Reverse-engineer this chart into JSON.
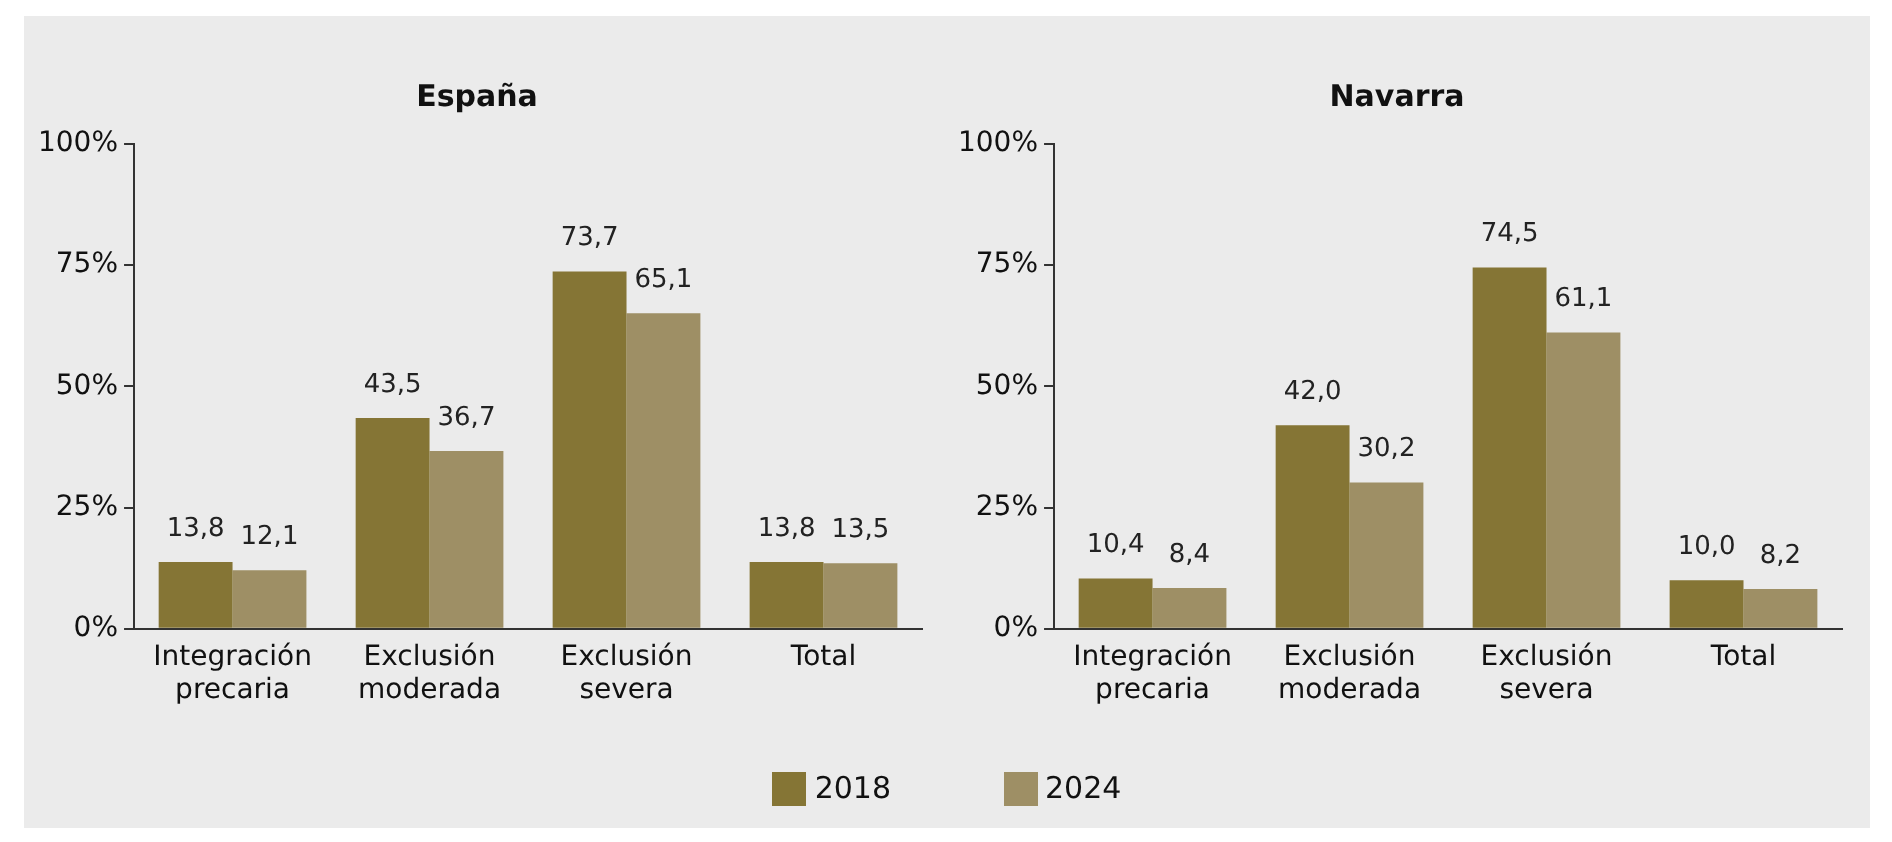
{
  "chart_data": [
    {
      "type": "bar",
      "title": "España",
      "categories": [
        "Integración precaria",
        "Exclusión moderada",
        "Exclusión severa",
        "Total"
      ],
      "series": [
        {
          "name": "2018",
          "color": "#857535",
          "values": [
            13.8,
            43.5,
            73.7,
            13.8
          ],
          "value_labels": [
            "13,8",
            "43,5",
            "73,7",
            "13,8"
          ]
        },
        {
          "name": "2024",
          "color": "#9e8f65",
          "values": [
            12.1,
            36.7,
            65.1,
            13.5
          ],
          "value_labels": [
            "12,1",
            "36,7",
            "65,1",
            "13,5"
          ]
        }
      ],
      "ylim": [
        0,
        100
      ],
      "yticks": [
        {
          "value": 0,
          "label": "0%"
        },
        {
          "value": 25,
          "label": "25%"
        },
        {
          "value": 50,
          "label": "50%"
        },
        {
          "value": 75,
          "label": "75%"
        },
        {
          "value": 100,
          "label": "100%"
        }
      ],
      "grid": false,
      "legend": "bottom"
    },
    {
      "type": "bar",
      "title": "Navarra",
      "categories": [
        "Integración precaria",
        "Exclusión moderada",
        "Exclusión severa",
        "Total"
      ],
      "series": [
        {
          "name": "2018",
          "color": "#857535",
          "values": [
            10.4,
            42.0,
            74.5,
            10.0
          ],
          "value_labels": [
            "10,4",
            "42,0",
            "74,5",
            "10,0"
          ]
        },
        {
          "name": "2024",
          "color": "#9e8f65",
          "values": [
            8.4,
            30.2,
            61.1,
            8.2
          ],
          "value_labels": [
            "8,4",
            "30,2",
            "61,1",
            "8,2"
          ]
        }
      ],
      "ylim": [
        0,
        100
      ],
      "yticks": [
        {
          "value": 0,
          "label": "0%"
        },
        {
          "value": 25,
          "label": "25%"
        },
        {
          "value": 50,
          "label": "50%"
        },
        {
          "value": 75,
          "label": "75%"
        },
        {
          "value": 100,
          "label": "100%"
        }
      ],
      "grid": false
    }
  ]
}
